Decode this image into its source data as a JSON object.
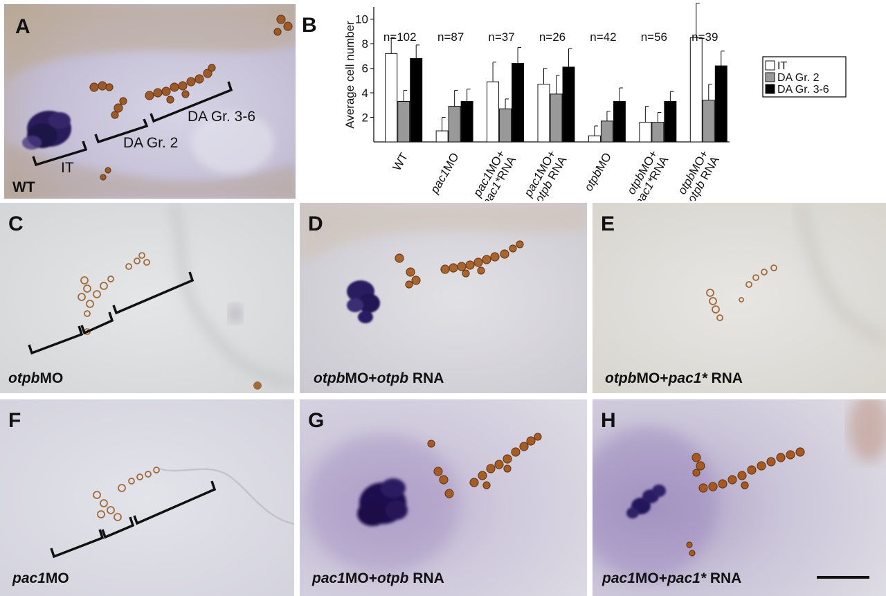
{
  "figure": {
    "panels": {
      "A": {
        "label": "A",
        "condition": "WT",
        "annotations": {
          "it": "IT",
          "dagr2": "DA Gr. 2",
          "dagr36": "DA Gr. 3-6"
        }
      },
      "B": {
        "label": "B"
      },
      "C": {
        "label": "C",
        "condition_parts": [
          {
            "t": "otpb",
            "i": true
          },
          {
            "t": "MO",
            "i": false
          }
        ]
      },
      "D": {
        "label": "D",
        "condition_parts": [
          {
            "t": "otpb",
            "i": true
          },
          {
            "t": "MO+",
            "i": false
          },
          {
            "t": "otpb",
            "i": true
          },
          {
            "t": " RNA",
            "i": false
          }
        ]
      },
      "E": {
        "label": "E",
        "condition_parts": [
          {
            "t": "otpb",
            "i": true
          },
          {
            "t": "MO+",
            "i": false
          },
          {
            "t": "pac1*",
            "i": true
          },
          {
            "t": " RNA",
            "i": false
          }
        ]
      },
      "F": {
        "label": "F",
        "condition_parts": [
          {
            "t": "pac1",
            "i": true
          },
          {
            "t": "MO",
            "i": false
          }
        ]
      },
      "G": {
        "label": "G",
        "condition_parts": [
          {
            "t": "pac1",
            "i": true
          },
          {
            "t": "MO+",
            "i": false
          },
          {
            "t": "otpb",
            "i": true
          },
          {
            "t": " RNA",
            "i": false
          }
        ]
      },
      "H": {
        "label": "H",
        "condition_parts": [
          {
            "t": "pac1",
            "i": true
          },
          {
            "t": "MO+",
            "i": false
          },
          {
            "t": "pac1*",
            "i": true
          },
          {
            "t": " RNA",
            "i": false
          }
        ]
      }
    }
  },
  "chart_data": {
    "type": "bar",
    "ylabel": "Average cell number",
    "xlabel": "",
    "ylim": [
      0,
      11
    ],
    "yticks": [
      "2",
      "4",
      "6",
      "8",
      "10"
    ],
    "grid": false,
    "legend_position": "right",
    "categories": [
      "WT",
      "pac1MO",
      "pac1MO+ pac1*RNA",
      "pac1MO+ otpb RNA",
      "otpbMO",
      "otpbMO+ pac1*RNA",
      "otpbMO+ otpb RNA"
    ],
    "category_labels": [
      [
        [
          {
            "t": "WT",
            "i": false
          }
        ]
      ],
      [
        [
          {
            "t": "pac1",
            "i": true
          },
          {
            "t": "MO",
            "i": false
          }
        ]
      ],
      [
        [
          {
            "t": "pac1",
            "i": true
          },
          {
            "t": "MO+",
            "i": false
          }
        ],
        [
          {
            "t": "pac1*",
            "i": true
          },
          {
            "t": "RNA",
            "i": false
          }
        ]
      ],
      [
        [
          {
            "t": "pac1",
            "i": true
          },
          {
            "t": "MO+",
            "i": false
          }
        ],
        [
          {
            "t": "otpb",
            "i": true
          },
          {
            "t": " RNA",
            "i": false
          }
        ]
      ],
      [
        [
          {
            "t": "otpb",
            "i": true
          },
          {
            "t": "MO",
            "i": false
          }
        ]
      ],
      [
        [
          {
            "t": "otpb",
            "i": true
          },
          {
            "t": "MO+",
            "i": false
          }
        ],
        [
          {
            "t": "pac1*",
            "i": true
          },
          {
            "t": "RNA",
            "i": false
          }
        ]
      ],
      [
        [
          {
            "t": "otpb",
            "i": true
          },
          {
            "t": "MO+",
            "i": false
          }
        ],
        [
          {
            "t": "otpb",
            "i": true
          },
          {
            "t": " RNA",
            "i": false
          }
        ]
      ]
    ],
    "n_labels": [
      "n=102",
      "n=87",
      "n=37",
      "n=26",
      "n=42",
      "n=56",
      "n=39"
    ],
    "series": [
      {
        "name": "IT",
        "color": "#ffffff",
        "values": [
          7.2,
          0.9,
          4.9,
          4.7,
          0.5,
          1.6,
          8.5
        ],
        "errors": [
          1.3,
          1.1,
          1.6,
          1.3,
          0.8,
          1.3,
          2.8
        ]
      },
      {
        "name": "DA Gr. 2",
        "color": "#999999",
        "values": [
          3.3,
          2.9,
          2.7,
          3.9,
          1.7,
          1.6,
          3.4
        ],
        "errors": [
          0.9,
          1.3,
          0.8,
          1.5,
          0.8,
          0.8,
          1.3
        ]
      },
      {
        "name": "DA Gr. 3-6",
        "color": "#000000",
        "values": [
          6.8,
          3.3,
          6.4,
          6.1,
          3.3,
          3.3,
          6.2
        ],
        "errors": [
          1.1,
          1.0,
          1.3,
          1.5,
          1.1,
          0.8,
          1.2
        ]
      }
    ]
  }
}
